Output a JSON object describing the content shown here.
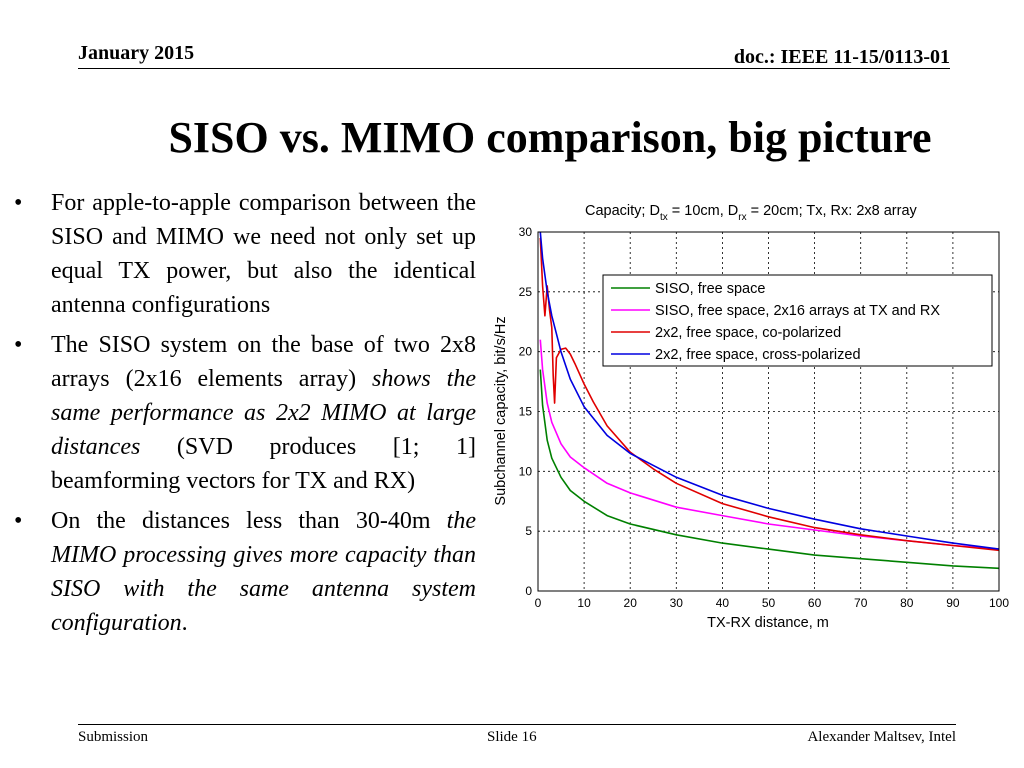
{
  "header": {
    "date": "January 2015",
    "doc": "doc.: IEEE 11-15/0113-01"
  },
  "title": "SISO vs. MIMO comparison, big picture",
  "bullets": [
    {
      "segments": [
        {
          "text": "For apple-to-apple comparison between the SISO and MIMO we need not only set up equal TX power, but also the identical antenna configurations",
          "italic": false
        }
      ]
    },
    {
      "segments": [
        {
          "text": "The SISO system on the base of two 2x8 arrays (2x16 elements array) ",
          "italic": false
        },
        {
          "text": "shows the same performance as 2x2 MIMO at large distances",
          "italic": true
        },
        {
          "text": " (SVD produces [1; 1] beamforming vectors for TX and RX)",
          "italic": false
        }
      ]
    },
    {
      "segments": [
        {
          "text": "On the distances less than 30-40m ",
          "italic": false
        },
        {
          "text": "the MIMO processing gives more capacity than SISO with the same antenna system configuration",
          "italic": true
        },
        {
          "text": ".",
          "italic": false
        }
      ]
    }
  ],
  "footer": {
    "left": "Submission",
    "center": "Slide 16",
    "right": "Alexander Maltsev, Intel"
  },
  "chart_data": {
    "type": "line",
    "title": "Capacity; D_tx = 10cm, D_rx = 20cm; Tx, Rx: 2x8 array",
    "title_parts": {
      "a": "Capacity; D",
      "sub1": "tx",
      "b": " = 10cm, D",
      "sub2": "rx",
      "c": " = 20cm; Tx, Rx: 2x8 array"
    },
    "xlabel": "TX-RX distance, m",
    "ylabel": "Subchannel capacity, bit/s/Hz",
    "xlim": [
      0,
      100
    ],
    "ylim": [
      0,
      30
    ],
    "xticks": [
      0,
      10,
      20,
      30,
      40,
      50,
      60,
      70,
      80,
      90,
      100
    ],
    "yticks": [
      0,
      5,
      10,
      15,
      20,
      25,
      30
    ],
    "grid": true,
    "legend_position": "top-right",
    "series": [
      {
        "name": "SISO, free space",
        "color": "#008000",
        "x": [
          0.5,
          1,
          2,
          3,
          5,
          7,
          10,
          15,
          20,
          30,
          40,
          50,
          60,
          70,
          80,
          90,
          100
        ],
        "y": [
          18.5,
          15.5,
          12.6,
          11.1,
          9.5,
          8.4,
          7.5,
          6.3,
          5.6,
          4.7,
          4.0,
          3.5,
          3.0,
          2.7,
          2.4,
          2.1,
          1.9
        ]
      },
      {
        "name": "SISO, free space, 2x16 arrays at TX and RX",
        "color": "#ff00ff",
        "x": [
          0.5,
          1,
          2,
          3,
          5,
          7,
          10,
          15,
          20,
          30,
          40,
          50,
          60,
          70,
          80,
          90,
          100
        ],
        "y": [
          21.0,
          18.5,
          15.7,
          14.1,
          12.3,
          11.2,
          10.3,
          9.0,
          8.2,
          7.0,
          6.3,
          5.6,
          5.1,
          4.6,
          4.2,
          3.8,
          3.5
        ]
      },
      {
        "name": "2x2, free space, co-polarized",
        "color": "#e00000",
        "x": [
          0.5,
          1,
          1.5,
          2,
          2.5,
          3,
          3.3,
          3.6,
          4,
          5,
          6,
          7,
          8,
          10,
          12,
          15,
          20,
          25,
          30,
          40,
          50,
          60,
          70,
          80,
          90,
          100
        ],
        "y": [
          29.5,
          25.5,
          23.0,
          25.5,
          23.5,
          22.0,
          18.0,
          15.7,
          19.5,
          20.2,
          20.3,
          19.8,
          19.0,
          17.3,
          15.8,
          13.8,
          11.6,
          10.2,
          9.0,
          7.3,
          6.2,
          5.3,
          4.7,
          4.2,
          3.8,
          3.4
        ]
      },
      {
        "name": "2x2, free space, cross-polarized",
        "color": "#0000e0",
        "x": [
          0.5,
          1,
          2,
          3,
          4,
          5,
          7,
          10,
          15,
          20,
          25,
          30,
          40,
          50,
          60,
          70,
          80,
          90,
          100
        ],
        "y": [
          30,
          27.8,
          25.0,
          23.0,
          21.5,
          20.0,
          17.7,
          15.4,
          13.0,
          11.5,
          10.5,
          9.5,
          8.0,
          6.9,
          6.0,
          5.2,
          4.6,
          4.0,
          3.5
        ]
      }
    ]
  }
}
